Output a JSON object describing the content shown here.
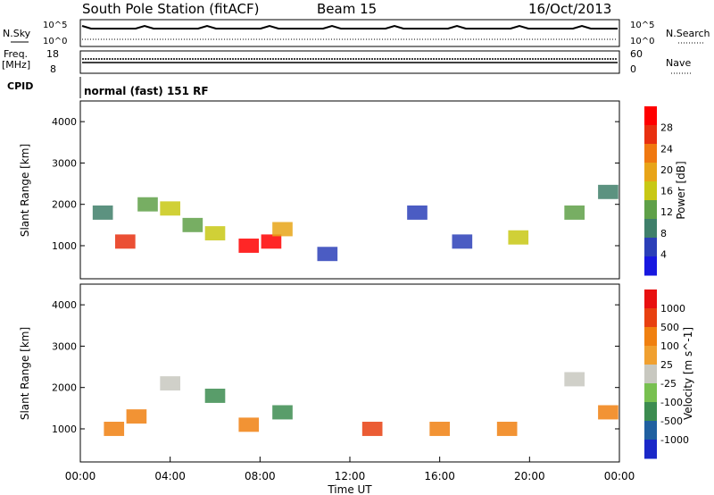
{
  "header": {
    "station": "South Pole Station (fitACF)",
    "beam": "Beam 15",
    "date": "16/Oct/2013"
  },
  "summary": {
    "nsky_label": "N.Sky",
    "nsky_ticks": [
      "10^5",
      "10^0"
    ],
    "nsearch_label": "N.Search",
    "nsearch_ticks": [
      "10^5",
      "10^0"
    ],
    "freq_label": "Freq.",
    "freq_unit": "[MHz]",
    "freq_ticks": [
      "18",
      "8"
    ],
    "nave_label": "Nave",
    "nave_ticks": [
      "60",
      "0"
    ],
    "cpid_label": "CPID",
    "cpid_value": "normal (fast) 151 RF"
  },
  "chart_data": [
    {
      "type": "heatmap",
      "name": "power-panel",
      "ylabel": "Slant Range [km]",
      "yticks": [
        "1000",
        "2000",
        "3000",
        "4000"
      ],
      "ylim": [
        200,
        4500
      ],
      "xlim": [
        0,
        24
      ],
      "colorbar_label": "Power [dB]",
      "colorbar_ticks": [
        "4",
        "8",
        "12",
        "16",
        "20",
        "24",
        "28"
      ],
      "colors": [
        "#1818e0",
        "#2b3fb8",
        "#3f7f6a",
        "#5fa048",
        "#c8c814",
        "#e8a418",
        "#f07810",
        "#e83010",
        "#ff0000"
      ],
      "blocks": [
        {
          "t": 1.0,
          "r": 1800,
          "level": 2
        },
        {
          "t": 2.0,
          "r": 1100,
          "level": 7
        },
        {
          "t": 3.0,
          "r": 2000,
          "level": 3
        },
        {
          "t": 4.0,
          "r": 1900,
          "level": 4
        },
        {
          "t": 5.0,
          "r": 1500,
          "level": 3
        },
        {
          "t": 6.0,
          "r": 1300,
          "level": 4
        },
        {
          "t": 7.5,
          "r": 1000,
          "level": 8
        },
        {
          "t": 8.5,
          "r": 1100,
          "level": 8
        },
        {
          "t": 9.0,
          "r": 1400,
          "level": 5
        },
        {
          "t": 11.0,
          "r": 800,
          "level": 1
        },
        {
          "t": 15.0,
          "r": 1800,
          "level": 1
        },
        {
          "t": 17.0,
          "r": 1100,
          "level": 1
        },
        {
          "t": 19.5,
          "r": 1200,
          "level": 4
        },
        {
          "t": 22.0,
          "r": 1800,
          "level": 3
        },
        {
          "t": 23.5,
          "r": 2300,
          "level": 2
        }
      ]
    },
    {
      "type": "heatmap",
      "name": "velocity-panel",
      "ylabel": "Slant Range [km]",
      "yticks": [
        "1000",
        "2000",
        "3000",
        "4000"
      ],
      "ylim": [
        200,
        4500
      ],
      "xlim": [
        0,
        24
      ],
      "xticks": [
        "00:00",
        "04:00",
        "08:00",
        "12:00",
        "16:00",
        "20:00",
        "00:00"
      ],
      "xlabel": "Time UT",
      "colorbar_label": "Velocity [m s^-1]",
      "colorbar_ticks": [
        "1000",
        "500",
        "100",
        "25",
        "-25",
        "-100",
        "-500",
        "-1000"
      ],
      "colors": [
        "#1a28c8",
        "#2060a0",
        "#3c8c50",
        "#78c050",
        "#c8c8c0",
        "#f0a030",
        "#f08010",
        "#e84010",
        "#e81010"
      ],
      "blocks": [
        {
          "t": 1.5,
          "r": 1000,
          "level": 6
        },
        {
          "t": 2.5,
          "r": 1300,
          "level": 6
        },
        {
          "t": 4.0,
          "r": 2100,
          "level": 4
        },
        {
          "t": 6.0,
          "r": 1800,
          "level": 2
        },
        {
          "t": 7.5,
          "r": 1100,
          "level": 6
        },
        {
          "t": 9.0,
          "r": 1400,
          "level": 2
        },
        {
          "t": 13.0,
          "r": 1000,
          "level": 7
        },
        {
          "t": 16.0,
          "r": 1000,
          "level": 6
        },
        {
          "t": 19.0,
          "r": 1000,
          "level": 6
        },
        {
          "t": 22.0,
          "r": 2200,
          "level": 4
        },
        {
          "t": 23.5,
          "r": 1400,
          "level": 6
        }
      ]
    }
  ]
}
